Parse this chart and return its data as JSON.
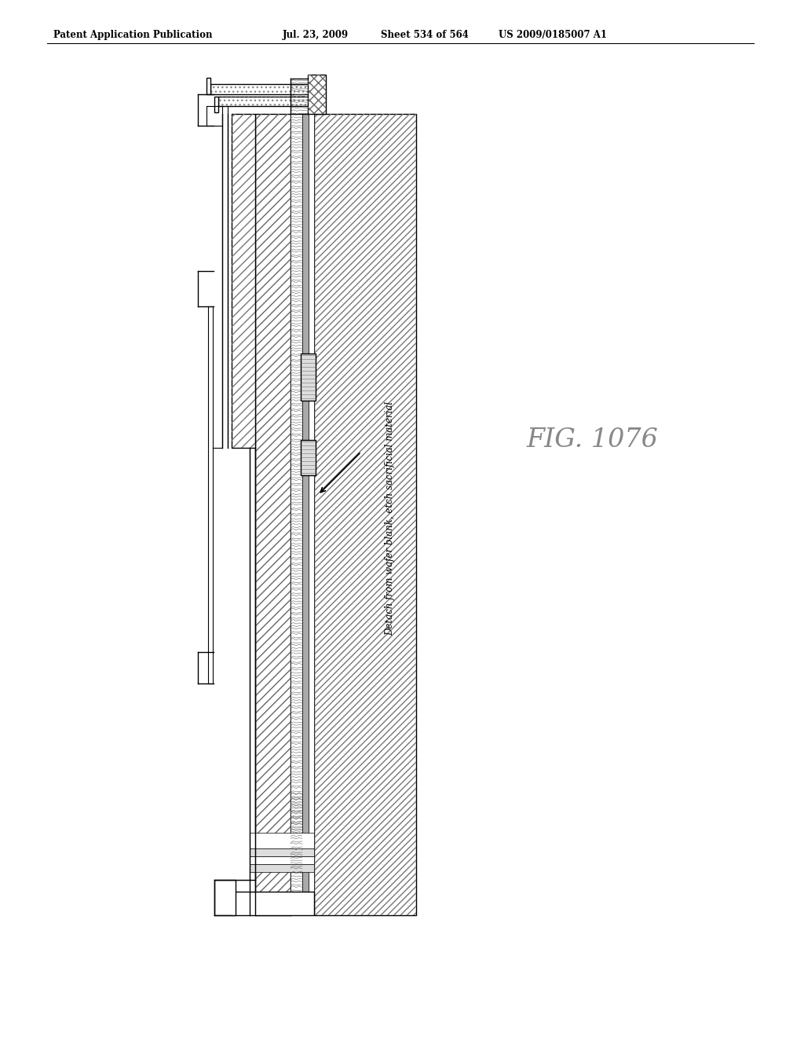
{
  "title_line1": "Patent Application Publication",
  "title_line2": "Jul. 23, 2009",
  "title_line3": "Sheet 534 of 564",
  "title_line4": "US 2009/0185007 A1",
  "fig_label": "FIG. 1076",
  "annotation_text": "Detach from wafer blank, etch sacrificial material",
  "bg_color": "#ffffff",
  "line_color": "#000000"
}
